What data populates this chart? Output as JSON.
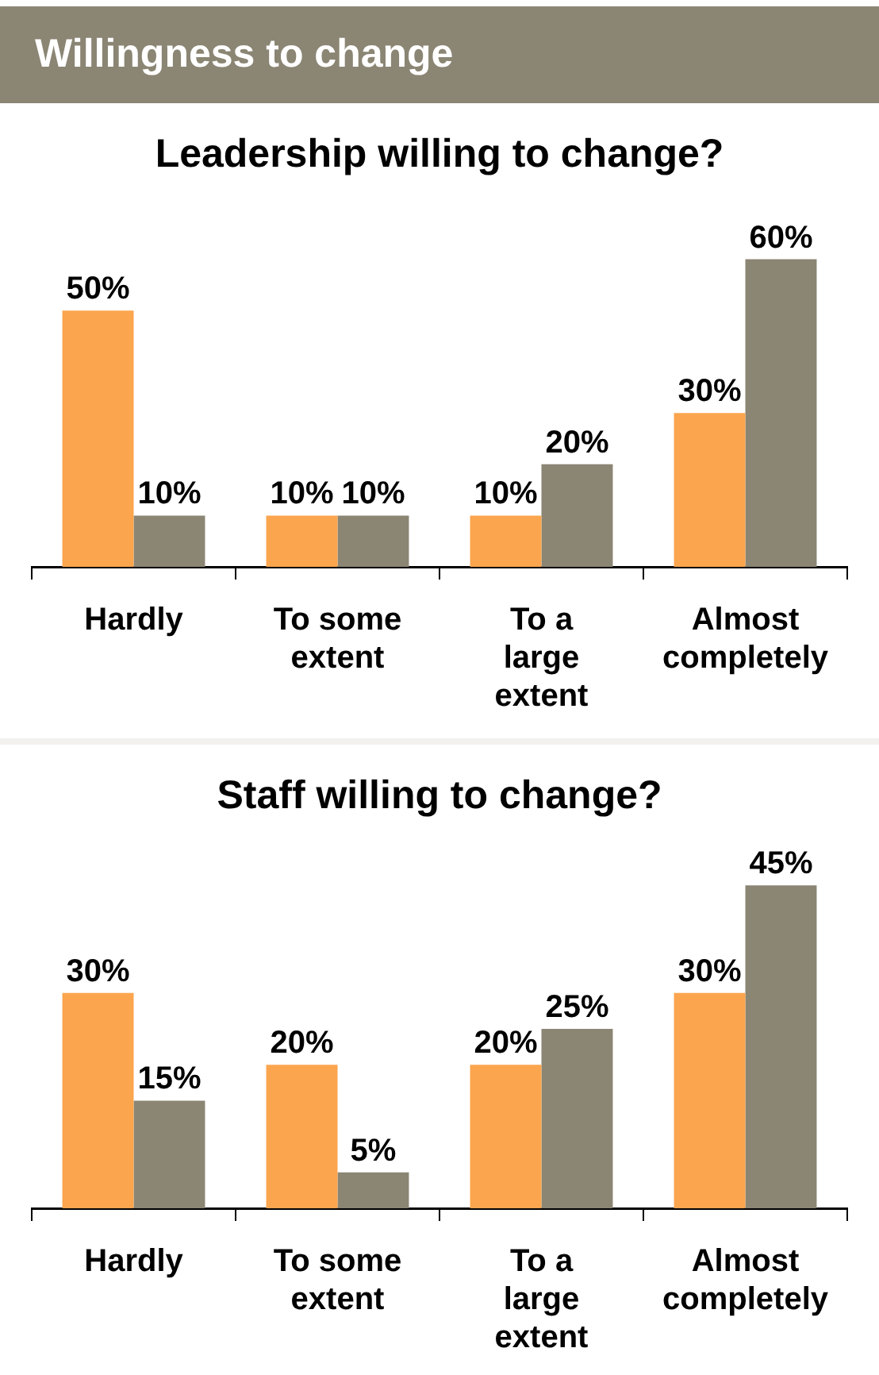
{
  "chart_data": [
    {
      "type": "other",
      "title": "Willingness to change"
    },
    {
      "type": "bar",
      "title": "Leadership willing to change?",
      "categories": [
        "Hardly",
        "To some extent",
        "To a large extent",
        "Almost completely"
      ],
      "legend": false,
      "grid": false,
      "series": [
        {
          "color": "#fba54e",
          "values": [
            50,
            10,
            10,
            30
          ],
          "value_labels": [
            "50%",
            "10%",
            "10%",
            "30%"
          ]
        },
        {
          "color": "#8b8574",
          "values": [
            10,
            10,
            20,
            60
          ],
          "value_labels": [
            "10%",
            "10%",
            "20%",
            "60%"
          ]
        }
      ]
    },
    {
      "type": "bar",
      "title": "Staff willing to change?",
      "categories": [
        "Hardly",
        "To some extent",
        "To a large extent",
        "Almost completely"
      ],
      "legend": false,
      "grid": false,
      "series": [
        {
          "color": "#fba54e",
          "values": [
            30,
            20,
            20,
            30
          ],
          "value_labels": [
            "30%",
            "20%",
            "20%",
            "30%"
          ]
        },
        {
          "color": "#8b8574",
          "values": [
            15,
            5,
            25,
            45
          ],
          "value_labels": [
            "15%",
            "5%",
            "25%",
            "45%"
          ]
        }
      ]
    }
  ]
}
